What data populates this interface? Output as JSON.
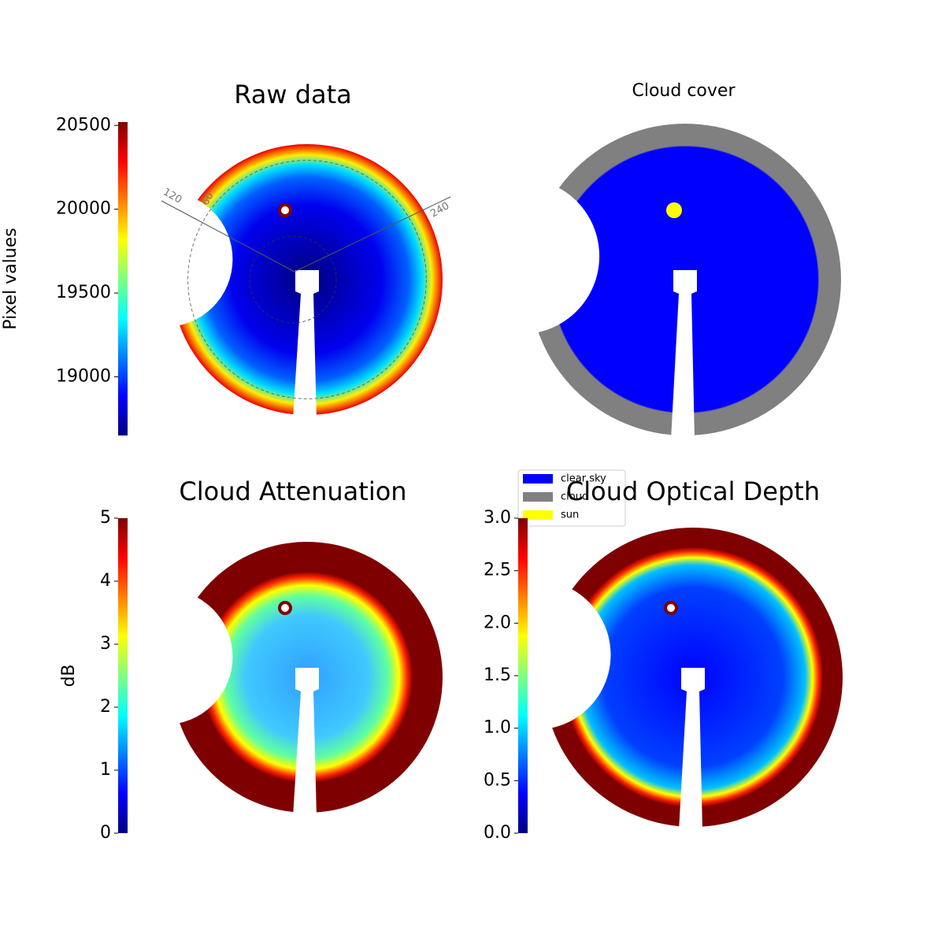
{
  "chart_data": [
    {
      "type": "image",
      "title": "Raw data",
      "colorbar_label": "Pixel values",
      "colormap": "jet",
      "ylim": [
        18650,
        20520
      ],
      "yticks": [
        19000,
        19500,
        20000,
        20500
      ],
      "polar_labels": [
        "120",
        "60",
        "240"
      ]
    },
    {
      "type": "image",
      "title": "Cloud cover",
      "legend_items": [
        {
          "name": "clear sky",
          "color": "#0000ff"
        },
        {
          "name": "cloud",
          "color": "#808080"
        },
        {
          "name": "sun",
          "color": "#ffff00"
        }
      ]
    },
    {
      "type": "image",
      "title": "Cloud Attenuation",
      "colorbar_label": "dB",
      "colormap": "jet",
      "ylim": [
        0,
        5
      ],
      "yticks": [
        0,
        1,
        2,
        3,
        4,
        5
      ]
    },
    {
      "type": "image",
      "title": "Cloud Optical Depth",
      "colormap": "jet",
      "ylim": [
        0,
        3
      ],
      "yticks": [
        {
          "value": 0,
          "label": "0.0"
        },
        {
          "value": 0.5,
          "label": "0.5"
        },
        {
          "value": 1,
          "label": "1.0"
        },
        {
          "value": 1.5,
          "label": "1.5"
        },
        {
          "value": 2,
          "label": "2.0"
        },
        {
          "value": 2.5,
          "label": "2.5"
        },
        {
          "value": 3,
          "label": "3.0"
        }
      ]
    }
  ]
}
